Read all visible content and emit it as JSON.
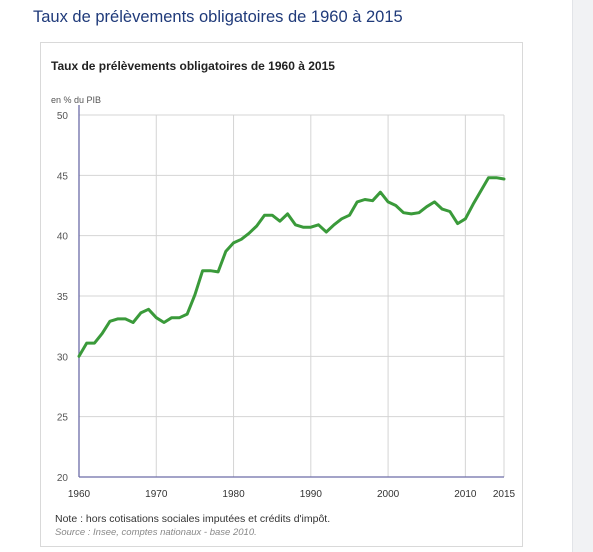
{
  "page": {
    "title": "Taux de prélèvements obligatoires de 1960 à 2015"
  },
  "chart_data": {
    "type": "line",
    "title": "Taux de prélèvements obligatoires de 1960 à 2015",
    "ylabel": "en % du PIB",
    "xlim": [
      1960,
      2015
    ],
    "ylim": [
      20,
      50
    ],
    "x_ticks": [
      1960,
      1970,
      1980,
      1990,
      2000,
      2010,
      2015
    ],
    "y_ticks": [
      20,
      25,
      30,
      35,
      40,
      45,
      50
    ],
    "grid": true,
    "line_color": "#3a9a3a",
    "series": [
      {
        "x": [
          1960,
          1961,
          1962,
          1963,
          1964,
          1965,
          1966,
          1967,
          1968,
          1969,
          1970,
          1971,
          1972,
          1973,
          1974,
          1975,
          1976,
          1977,
          1978,
          1979,
          1980,
          1981,
          1982,
          1983,
          1984,
          1985,
          1986,
          1987,
          1988,
          1989,
          1990,
          1991,
          1992,
          1993,
          1994,
          1995,
          1996,
          1997,
          1998,
          1999,
          2000,
          2001,
          2002,
          2003,
          2004,
          2005,
          2006,
          2007,
          2008,
          2009,
          2010,
          2011,
          2012,
          2013,
          2014,
          2015
        ],
        "y": [
          30.0,
          31.1,
          31.1,
          31.9,
          32.9,
          33.1,
          33.1,
          32.8,
          33.6,
          33.9,
          33.2,
          32.8,
          33.2,
          33.2,
          33.5,
          35.1,
          37.1,
          37.1,
          37.0,
          38.7,
          39.4,
          39.7,
          40.2,
          40.8,
          41.7,
          41.7,
          41.2,
          41.8,
          40.9,
          40.7,
          40.7,
          40.9,
          40.3,
          40.9,
          41.4,
          41.7,
          42.8,
          43.0,
          42.9,
          43.6,
          42.8,
          42.5,
          41.9,
          41.8,
          41.9,
          42.4,
          42.8,
          42.2,
          42.0,
          41.0,
          41.4,
          42.6,
          43.7,
          44.8,
          44.8,
          44.7
        ]
      }
    ],
    "note": "Note : hors cotisations sociales imputées et crédits d'impôt.",
    "source": "Source : Insee, comptes nationaux - base 2010."
  }
}
